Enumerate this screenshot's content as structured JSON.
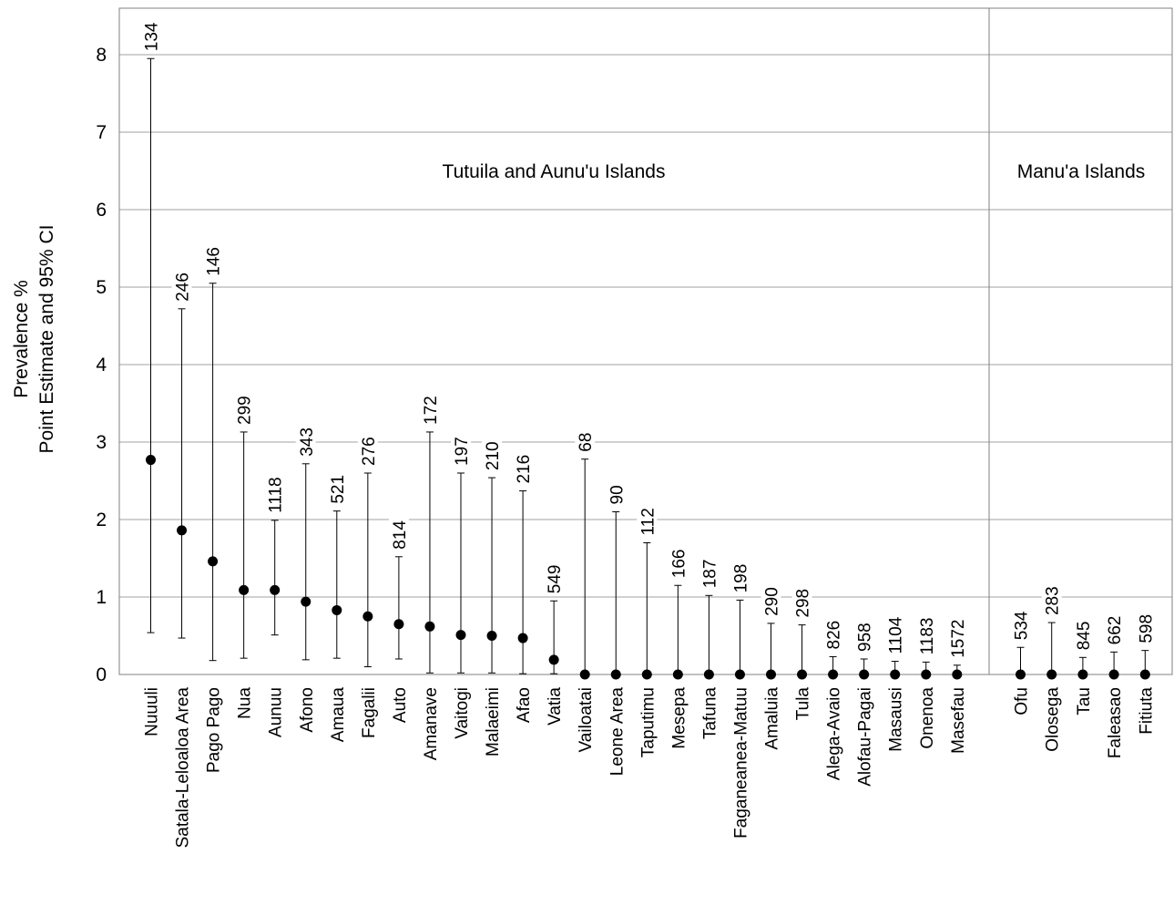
{
  "chart_data": {
    "type": "scatter",
    "ylabel_line1": "Prevalence %",
    "ylabel_line2": "Point Estimate and 95% CI",
    "ylim": [
      0,
      8.6
    ],
    "yticks": [
      "0",
      "1",
      "2",
      "3",
      "4",
      "5",
      "6",
      "7",
      "8"
    ],
    "grid": "horizontal",
    "regions": [
      {
        "name": "Tutuila and Aunu'u Islands"
      },
      {
        "name": "Manu'a Islands"
      }
    ],
    "points": [
      {
        "region": 0,
        "category": "Nuuuli",
        "n": "134",
        "estimate": 2.77,
        "lower": 0.54,
        "upper": 7.95
      },
      {
        "region": 0,
        "category": "Satala-Leloaloa Area",
        "n": "246",
        "estimate": 1.86,
        "lower": 0.47,
        "upper": 4.72
      },
      {
        "region": 0,
        "category": "Pago Pago",
        "n": "146",
        "estimate": 1.46,
        "lower": 0.18,
        "upper": 5.05
      },
      {
        "region": 0,
        "category": "Nua",
        "n": "299",
        "estimate": 1.09,
        "lower": 0.21,
        "upper": 3.13
      },
      {
        "region": 0,
        "category": "Aunuu",
        "n": "1118",
        "estimate": 1.09,
        "lower": 0.51,
        "upper": 1.99
      },
      {
        "region": 0,
        "category": "Afono",
        "n": "343",
        "estimate": 0.94,
        "lower": 0.19,
        "upper": 2.72
      },
      {
        "region": 0,
        "category": "Amaua",
        "n": "521",
        "estimate": 0.83,
        "lower": 0.21,
        "upper": 2.11
      },
      {
        "region": 0,
        "category": "Fagalii",
        "n": "276",
        "estimate": 0.75,
        "lower": 0.1,
        "upper": 2.6
      },
      {
        "region": 0,
        "category": "Auto",
        "n": "814",
        "estimate": 0.65,
        "lower": 0.2,
        "upper": 1.52
      },
      {
        "region": 0,
        "category": "Amanave",
        "n": "172",
        "estimate": 0.62,
        "lower": 0.02,
        "upper": 3.13
      },
      {
        "region": 0,
        "category": "Vaitogi",
        "n": "197",
        "estimate": 0.51,
        "lower": 0.02,
        "upper": 2.6
      },
      {
        "region": 0,
        "category": "Malaeimi",
        "n": "210",
        "estimate": 0.5,
        "lower": 0.02,
        "upper": 2.54
      },
      {
        "region": 0,
        "category": "Afao",
        "n": "216",
        "estimate": 0.47,
        "lower": 0.01,
        "upper": 2.37
      },
      {
        "region": 0,
        "category": "Vatia",
        "n": "549",
        "estimate": 0.19,
        "lower": 0.01,
        "upper": 0.95
      },
      {
        "region": 0,
        "category": "Vailoatai",
        "n": "68",
        "estimate": 0,
        "lower": 0,
        "upper": 2.78
      },
      {
        "region": 0,
        "category": "Leone Area",
        "n": "90",
        "estimate": 0,
        "lower": 0,
        "upper": 2.1
      },
      {
        "region": 0,
        "category": "Taputimu",
        "n": "112",
        "estimate": 0,
        "lower": 0,
        "upper": 1.7
      },
      {
        "region": 0,
        "category": "Mesepa",
        "n": "166",
        "estimate": 0,
        "lower": 0,
        "upper": 1.15
      },
      {
        "region": 0,
        "category": "Tafuna",
        "n": "187",
        "estimate": 0,
        "lower": 0,
        "upper": 1.02
      },
      {
        "region": 0,
        "category": "Faganeanea-Matuu",
        "n": "198",
        "estimate": 0,
        "lower": 0,
        "upper": 0.96
      },
      {
        "region": 0,
        "category": "Amaluia",
        "n": "290",
        "estimate": 0,
        "lower": 0,
        "upper": 0.66
      },
      {
        "region": 0,
        "category": "Tula",
        "n": "298",
        "estimate": 0,
        "lower": 0,
        "upper": 0.64
      },
      {
        "region": 0,
        "category": "Alega-Avaio",
        "n": "826",
        "estimate": 0,
        "lower": 0,
        "upper": 0.23
      },
      {
        "region": 0,
        "category": "Alofau-Pagai",
        "n": "958",
        "estimate": 0,
        "lower": 0,
        "upper": 0.2
      },
      {
        "region": 0,
        "category": "Masausi",
        "n": "1104",
        "estimate": 0,
        "lower": 0,
        "upper": 0.17
      },
      {
        "region": 0,
        "category": "Onenoa",
        "n": "1183",
        "estimate": 0,
        "lower": 0,
        "upper": 0.16
      },
      {
        "region": 0,
        "category": "Masefau",
        "n": "1572",
        "estimate": 0,
        "lower": 0,
        "upper": 0.12
      },
      {
        "region": 1,
        "category": "Ofu",
        "n": "534",
        "estimate": 0,
        "lower": 0,
        "upper": 0.35
      },
      {
        "region": 1,
        "category": "Olosega",
        "n": "283",
        "estimate": 0,
        "lower": 0,
        "upper": 0.67
      },
      {
        "region": 1,
        "category": "Tau",
        "n": "845",
        "estimate": 0,
        "lower": 0,
        "upper": 0.22
      },
      {
        "region": 1,
        "category": "Faleasao",
        "n": "662",
        "estimate": 0,
        "lower": 0,
        "upper": 0.29
      },
      {
        "region": 1,
        "category": "Fitiuta",
        "n": "598",
        "estimate": 0,
        "lower": 0,
        "upper": 0.31
      }
    ],
    "colors": {
      "point": "#000000",
      "line": "#000000",
      "grid": "#a0a0a0",
      "frame": "#808080"
    }
  }
}
